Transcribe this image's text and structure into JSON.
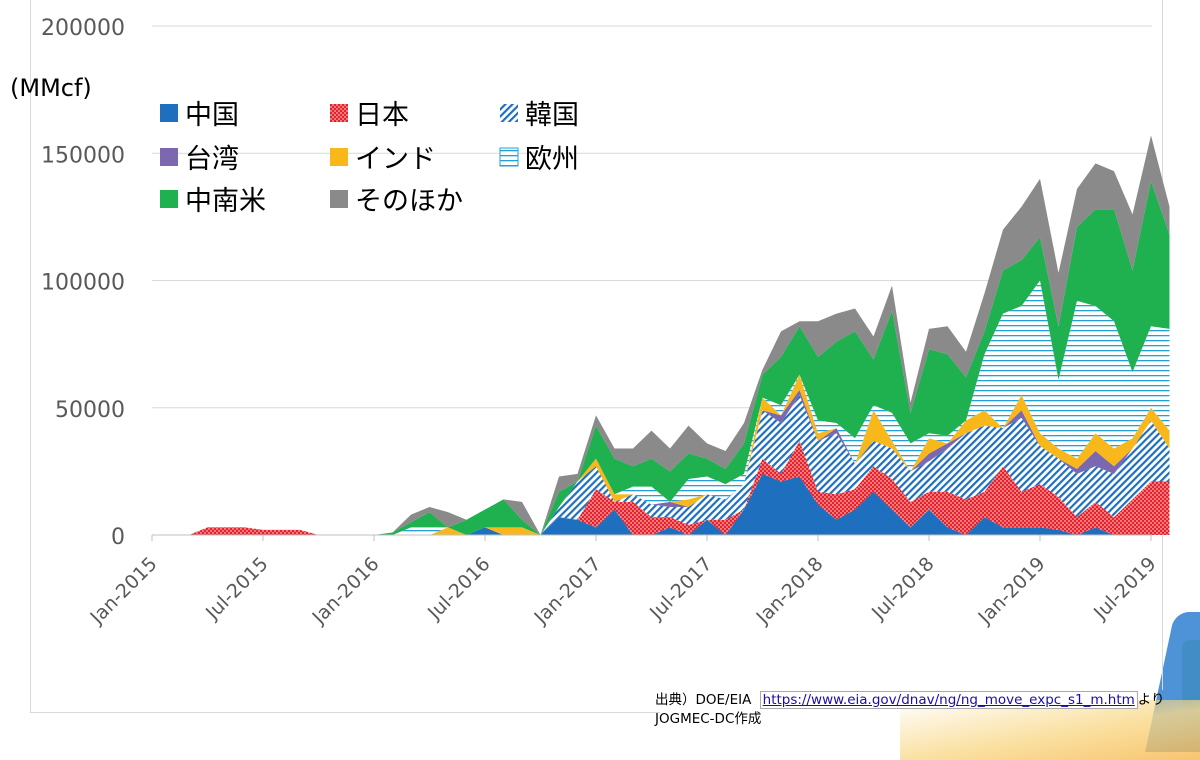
{
  "chart_data": {
    "type": "area",
    "stacked": true,
    "unit_label": "(MMcf)",
    "ylim": [
      0,
      200000
    ],
    "y_ticks": [
      0,
      50000,
      100000,
      150000,
      200000
    ],
    "y_tick_labels": [
      "0",
      "50000",
      "100000",
      "150000",
      "200000"
    ],
    "x_tick_labels": [
      "Jan-2015",
      "Jul-2015",
      "Jan-2016",
      "Jul-2016",
      "Jan-2017",
      "Jul-2017",
      "Jan-2018",
      "Jul-2018",
      "Jan-2019",
      "Jul-2019"
    ],
    "months": [
      "2015-01",
      "2015-02",
      "2015-03",
      "2015-04",
      "2015-05",
      "2015-06",
      "2015-07",
      "2015-08",
      "2015-09",
      "2015-10",
      "2015-11",
      "2015-12",
      "2016-01",
      "2016-02",
      "2016-03",
      "2016-04",
      "2016-05",
      "2016-06",
      "2016-07",
      "2016-08",
      "2016-09",
      "2016-10",
      "2016-11",
      "2016-12",
      "2017-01",
      "2017-02",
      "2017-03",
      "2017-04",
      "2017-05",
      "2017-06",
      "2017-07",
      "2017-08",
      "2017-09",
      "2017-10",
      "2017-11",
      "2017-12",
      "2018-01",
      "2018-02",
      "2018-03",
      "2018-04",
      "2018-05",
      "2018-06",
      "2018-07",
      "2018-08",
      "2018-09",
      "2018-10",
      "2018-11",
      "2018-12",
      "2019-01",
      "2019-02",
      "2019-03",
      "2019-04",
      "2019-05",
      "2019-06",
      "2019-07",
      "2019-08"
    ],
    "grid": true,
    "legend_position": "top-left",
    "series": [
      {
        "name": "中国",
        "color": "#1f6fbf",
        "pattern": "solid",
        "values": [
          0,
          0,
          0,
          0,
          0,
          0,
          0,
          0,
          0,
          0,
          0,
          0,
          0,
          0,
          0,
          0,
          0,
          0,
          3000,
          0,
          0,
          0,
          7000,
          6000,
          3000,
          10000,
          0,
          0,
          3000,
          0,
          6000,
          0,
          10000,
          24000,
          21000,
          23000,
          12000,
          6000,
          10000,
          17000,
          10000,
          3000,
          10000,
          3000,
          0,
          7000,
          3000,
          3000,
          3000,
          2000,
          0,
          3000,
          0,
          0,
          0,
          0
        ]
      },
      {
        "name": "日本",
        "color": "#e8202a",
        "pattern": "dots",
        "values": [
          0,
          0,
          0,
          3000,
          3000,
          3000,
          2000,
          2000,
          2000,
          0,
          0,
          0,
          0,
          0,
          0,
          0,
          0,
          0,
          0,
          0,
          0,
          0,
          0,
          0,
          15000,
          3000,
          13000,
          7000,
          4000,
          4000,
          0,
          6000,
          0,
          6000,
          3000,
          14000,
          5000,
          10000,
          8000,
          10000,
          12000,
          10000,
          7000,
          14000,
          14000,
          10000,
          24000,
          14000,
          17000,
          13000,
          7000,
          10000,
          7000,
          14000,
          21000,
          21000
        ]
      },
      {
        "name": "韓国",
        "color": "#1f6fbf",
        "pattern": "diag",
        "values": [
          0,
          0,
          0,
          0,
          0,
          0,
          0,
          0,
          0,
          0,
          0,
          0,
          0,
          0,
          0,
          0,
          0,
          0,
          0,
          0,
          0,
          0,
          4000,
          15000,
          9000,
          0,
          3000,
          5000,
          4000,
          7000,
          10000,
          8000,
          10000,
          19000,
          20000,
          18000,
          20000,
          24000,
          10000,
          10000,
          12000,
          12000,
          12000,
          17000,
          26000,
          26000,
          15000,
          29000,
          15000,
          15000,
          17000,
          14000,
          17000,
          20000,
          24000,
          13000
        ]
      },
      {
        "name": "台湾",
        "color": "#7b68b0",
        "pattern": "solid",
        "values": [
          0,
          0,
          0,
          0,
          0,
          0,
          0,
          0,
          0,
          0,
          0,
          0,
          0,
          0,
          0,
          0,
          0,
          0,
          0,
          0,
          0,
          0,
          0,
          0,
          0,
          0,
          0,
          0,
          2000,
          0,
          0,
          0,
          0,
          0,
          3000,
          2000,
          0,
          2000,
          0,
          0,
          0,
          0,
          3000,
          2000,
          0,
          0,
          0,
          3000,
          0,
          0,
          2000,
          6000,
          3000,
          0,
          0,
          0
        ]
      },
      {
        "name": "インド",
        "color": "#f8b81b",
        "pattern": "solid",
        "values": [
          0,
          0,
          0,
          0,
          0,
          0,
          0,
          0,
          0,
          0,
          0,
          0,
          0,
          0,
          0,
          0,
          3000,
          0,
          0,
          3000,
          3000,
          0,
          0,
          0,
          3000,
          3000,
          0,
          0,
          0,
          3000,
          0,
          0,
          0,
          5000,
          0,
          6000,
          3000,
          0,
          0,
          12000,
          3000,
          0,
          6000,
          0,
          5000,
          6000,
          0,
          6000,
          5000,
          4000,
          4000,
          7000,
          7000,
          4000,
          5000,
          7000
        ]
      },
      {
        "name": "欧州",
        "color": "#22a0d8",
        "pattern": "hstripes",
        "values": [
          0,
          0,
          0,
          0,
          0,
          0,
          0,
          0,
          0,
          0,
          0,
          0,
          0,
          0,
          3000,
          3000,
          0,
          0,
          0,
          0,
          0,
          0,
          0,
          0,
          0,
          0,
          3000,
          7000,
          0,
          8000,
          7000,
          6000,
          4000,
          0,
          4000,
          0,
          5000,
          2000,
          10000,
          2000,
          11000,
          11000,
          2000,
          3000,
          0,
          22000,
          45000,
          35000,
          60000,
          27000,
          62000,
          50000,
          50000,
          26000,
          32000,
          40000
        ]
      },
      {
        "name": "中南米",
        "color": "#1fb04f",
        "pattern": "solid",
        "values": [
          0,
          0,
          0,
          0,
          0,
          0,
          0,
          0,
          0,
          0,
          0,
          0,
          0,
          1000,
          2000,
          6000,
          0,
          6000,
          7000,
          11000,
          3000,
          0,
          6000,
          0,
          13000,
          14000,
          8000,
          11000,
          12000,
          10000,
          7000,
          6000,
          12000,
          9000,
          19000,
          19000,
          25000,
          32000,
          42000,
          18000,
          40000,
          12000,
          33000,
          32000,
          17000,
          9000,
          17000,
          18000,
          17000,
          21000,
          29000,
          38000,
          44000,
          40000,
          57000,
          37000
        ]
      },
      {
        "name": "そのほか",
        "color": "#8a8a8a",
        "pattern": "solid",
        "values": [
          0,
          0,
          0,
          0,
          0,
          0,
          0,
          0,
          0,
          0,
          0,
          0,
          0,
          0,
          3000,
          2000,
          6000,
          0,
          0,
          0,
          7000,
          0,
          6000,
          3000,
          4000,
          4000,
          7000,
          11000,
          9000,
          11000,
          6000,
          7000,
          8000,
          2000,
          10000,
          2000,
          14000,
          11000,
          9000,
          9000,
          10000,
          4000,
          8000,
          11000,
          10000,
          15000,
          16000,
          21000,
          23000,
          21000,
          15000,
          18000,
          15000,
          22000,
          18000,
          11000
        ]
      }
    ]
  },
  "source": {
    "prefix": "出典）DOE/EIA",
    "url": "https://www.eia.gov/dnav/ng/ng_move_expc_s1_m.htm",
    "suffix": "より JOGMEC-DC作成"
  }
}
